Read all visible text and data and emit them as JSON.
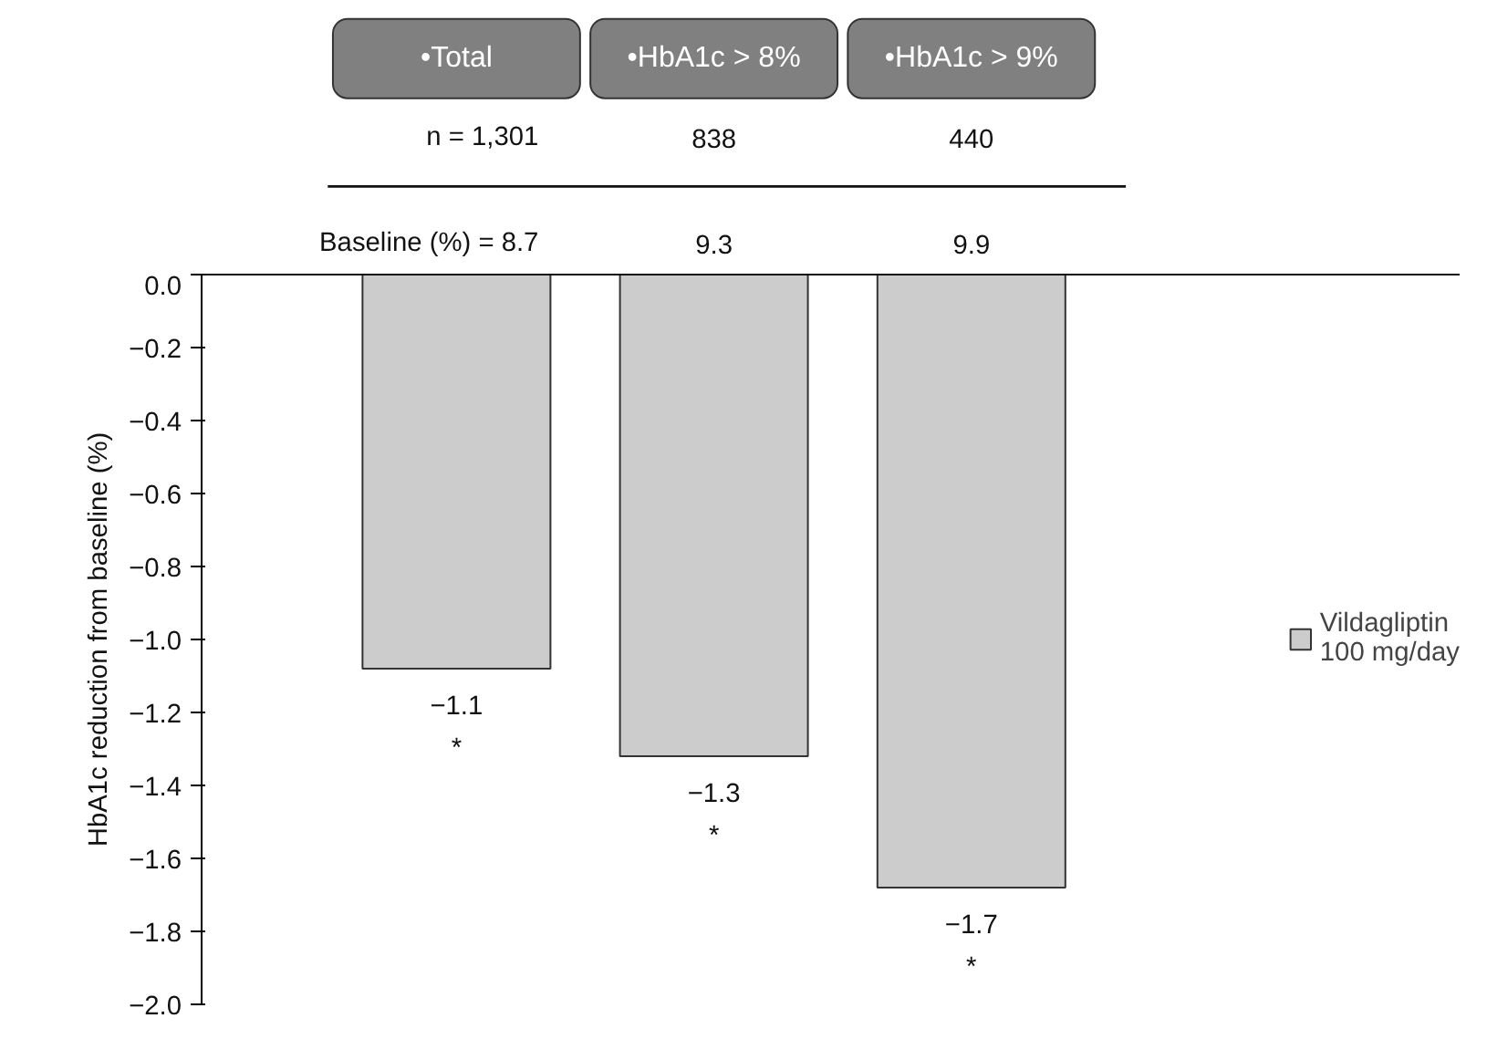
{
  "chart_data": {
    "type": "bar",
    "categories": [
      "•Total",
      "•HbA1c > 8%",
      "•HbA1c > 9%"
    ],
    "series": [
      {
        "name": "Vildagliptin\n100 mg/day",
        "color": "#cccccc",
        "values": [
          -1.08,
          -1.32,
          -1.68
        ],
        "value_labels": [
          "−1.1",
          "−1.3",
          "−1.7"
        ]
      }
    ],
    "ylabel": "HbA1c reduction from baseline (%)",
    "ylim": [
      -2.0,
      0.0
    ],
    "yticks": [
      {
        "value": 0.0,
        "label": "0.0"
      },
      {
        "value": -0.2,
        "label": "−0.2"
      },
      {
        "value": -0.4,
        "label": "−0.4"
      },
      {
        "value": -0.6,
        "label": "−0.6"
      },
      {
        "value": -0.8,
        "label": "−0.8"
      },
      {
        "value": -1.0,
        "label": "−1.0"
      },
      {
        "value": -1.2,
        "label": "−1.2"
      },
      {
        "value": -1.4,
        "label": "−1.4"
      },
      {
        "value": -1.6,
        "label": "−1.6"
      },
      {
        "value": -1.8,
        "label": "−1.8"
      },
      {
        "value": -2.0,
        "label": "−2.0"
      }
    ],
    "annotations": [
      "n = 1,301",
      "838",
      "440",
      "Baseline (%) = 8.7",
      "9.3",
      "9.9",
      "*",
      "*",
      "*"
    ],
    "grid": false,
    "legend": "right"
  }
}
